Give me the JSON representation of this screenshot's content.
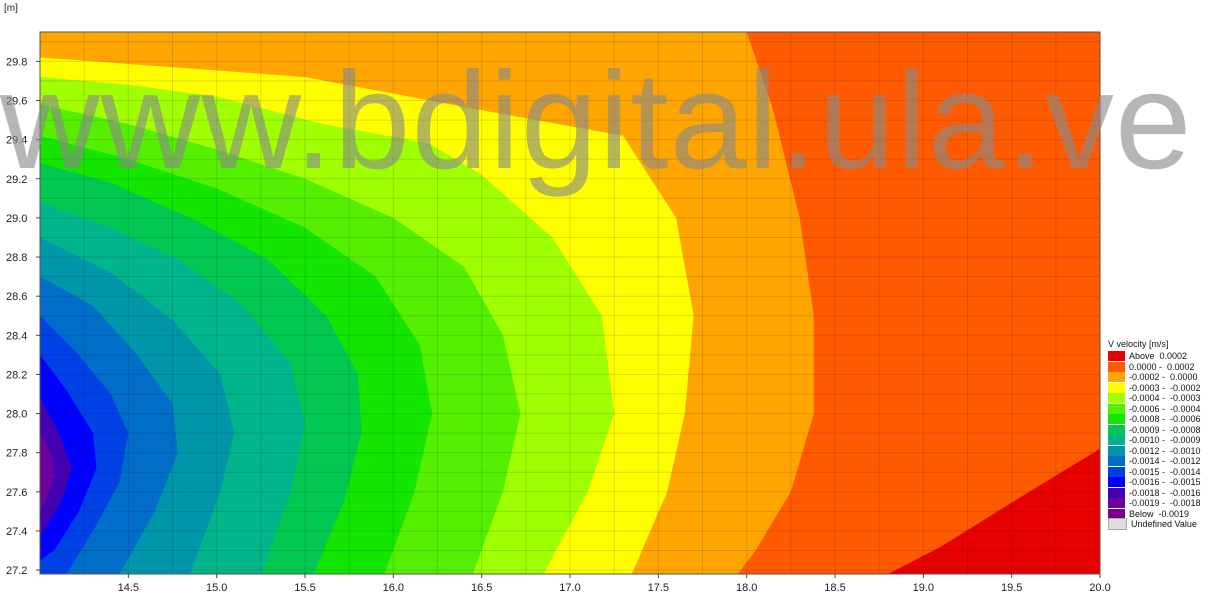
{
  "chart_data": {
    "type": "heatmap",
    "subtype": "filled-contour",
    "y_unit_label": "[m]",
    "x_ticks": [
      "14.5",
      "15.0",
      "15.5",
      "16.0",
      "16.5",
      "17.0",
      "17.5",
      "18.0",
      "18.5",
      "19.0",
      "19.5",
      "20.0"
    ],
    "y_ticks": [
      "27.2",
      "27.4",
      "27.6",
      "27.8",
      "28.0",
      "28.2",
      "28.4",
      "28.6",
      "28.8",
      "29.0",
      "29.2",
      "29.4",
      "29.6",
      "29.8"
    ],
    "xlim": [
      14.0,
      20.0
    ],
    "ylim": [
      27.18,
      29.95
    ],
    "grid": true,
    "legend_position": "right",
    "legend_title": "V velocity [m/s]",
    "legend": [
      {
        "label": "Above",
        "range": "0.0002",
        "color": "#e60000"
      },
      {
        "label": "0.0000 -",
        "range": "0.0002",
        "color": "#ff5a00"
      },
      {
        "label": "-0.0002 -",
        "range": "0.0000",
        "color": "#ffa500"
      },
      {
        "label": "-0.0003 -",
        "range": "-0.0002",
        "color": "#ffff00"
      },
      {
        "label": "-0.0004 -",
        "range": "-0.0003",
        "color": "#a0ff00"
      },
      {
        "label": "-0.0006 -",
        "range": "-0.0004",
        "color": "#55f000"
      },
      {
        "label": "-0.0008 -",
        "range": "-0.0006",
        "color": "#14e600"
      },
      {
        "label": "-0.0009 -",
        "range": "-0.0008",
        "color": "#00c850"
      },
      {
        "label": "-0.0010 -",
        "range": "-0.0009",
        "color": "#00b48c"
      },
      {
        "label": "-0.0012 -",
        "range": "-0.0010",
        "color": "#0096aa"
      },
      {
        "label": "-0.0014 -",
        "range": "-0.0012",
        "color": "#006ec8"
      },
      {
        "label": "-0.0015 -",
        "range": "-0.0014",
        "color": "#0041e6"
      },
      {
        "label": "-0.0016 -",
        "range": "-0.0015",
        "color": "#0000ff"
      },
      {
        "label": "-0.0018 -",
        "range": "-0.0016",
        "color": "#4600b4"
      },
      {
        "label": "-0.0019 -",
        "range": "-0.0018",
        "color": "#6e00a0"
      },
      {
        "label": "Below",
        "range": "-0.0019",
        "color": "#78008c"
      },
      {
        "label": "Undefined Value",
        "range": "",
        "color": "#dcdcdc"
      }
    ],
    "contours": [
      {
        "color": "#ff5a00",
        "points": [
          [
            14.0,
            29.95
          ],
          [
            20.0,
            29.95
          ],
          [
            20.0,
            27.18
          ],
          [
            14.0,
            27.18
          ]
        ]
      },
      {
        "color": "#e60000",
        "points": [
          [
            18.8,
            27.18
          ],
          [
            20.0,
            27.18
          ],
          [
            20.0,
            27.82
          ],
          [
            19.6,
            27.6
          ],
          [
            19.1,
            27.32
          ]
        ]
      },
      {
        "color": "#ffa500",
        "points": [
          [
            14.0,
            29.95
          ],
          [
            18.0,
            29.95
          ],
          [
            18.15,
            29.55
          ],
          [
            18.3,
            29.0
          ],
          [
            18.38,
            28.5
          ],
          [
            18.38,
            28.0
          ],
          [
            18.25,
            27.6
          ],
          [
            18.05,
            27.3
          ],
          [
            17.95,
            27.18
          ],
          [
            14.0,
            27.18
          ]
        ]
      },
      {
        "color": "#ffff00",
        "points": [
          [
            14.0,
            29.82
          ],
          [
            15.5,
            29.72
          ],
          [
            16.5,
            29.55
          ],
          [
            17.3,
            29.42
          ],
          [
            17.6,
            29.0
          ],
          [
            17.7,
            28.5
          ],
          [
            17.65,
            28.0
          ],
          [
            17.55,
            27.6
          ],
          [
            17.35,
            27.18
          ],
          [
            14.0,
            27.18
          ]
        ]
      },
      {
        "color": "#a0ff00",
        "points": [
          [
            14.0,
            29.72
          ],
          [
            14.5,
            29.68
          ],
          [
            15.0,
            29.62
          ],
          [
            15.6,
            29.48
          ],
          [
            16.2,
            29.38
          ],
          [
            16.5,
            29.22
          ],
          [
            16.9,
            28.9
          ],
          [
            17.18,
            28.5
          ],
          [
            17.25,
            28.0
          ],
          [
            17.1,
            27.6
          ],
          [
            16.85,
            27.18
          ],
          [
            14.0,
            27.18
          ]
        ]
      },
      {
        "color": "#55f000",
        "points": [
          [
            14.0,
            29.58
          ],
          [
            14.5,
            29.48
          ],
          [
            15.0,
            29.35
          ],
          [
            15.5,
            29.2
          ],
          [
            16.0,
            29.0
          ],
          [
            16.4,
            28.75
          ],
          [
            16.62,
            28.4
          ],
          [
            16.72,
            28.0
          ],
          [
            16.62,
            27.6
          ],
          [
            16.45,
            27.18
          ],
          [
            14.0,
            27.18
          ]
        ]
      },
      {
        "color": "#14e600",
        "points": [
          [
            14.0,
            29.42
          ],
          [
            14.5,
            29.3
          ],
          [
            15.0,
            29.15
          ],
          [
            15.5,
            28.95
          ],
          [
            15.9,
            28.7
          ],
          [
            16.15,
            28.35
          ],
          [
            16.22,
            28.0
          ],
          [
            16.12,
            27.6
          ],
          [
            15.95,
            27.18
          ],
          [
            14.0,
            27.18
          ]
        ]
      },
      {
        "color": "#00c850",
        "points": [
          [
            14.0,
            29.28
          ],
          [
            14.4,
            29.18
          ],
          [
            14.9,
            28.98
          ],
          [
            15.3,
            28.78
          ],
          [
            15.62,
            28.5
          ],
          [
            15.8,
            28.2
          ],
          [
            15.82,
            27.9
          ],
          [
            15.72,
            27.55
          ],
          [
            15.55,
            27.18
          ],
          [
            14.0,
            27.18
          ]
        ]
      },
      {
        "color": "#00b48c",
        "points": [
          [
            14.0,
            29.08
          ],
          [
            14.4,
            28.95
          ],
          [
            14.8,
            28.78
          ],
          [
            15.15,
            28.55
          ],
          [
            15.42,
            28.25
          ],
          [
            15.5,
            27.95
          ],
          [
            15.42,
            27.6
          ],
          [
            15.25,
            27.18
          ],
          [
            14.0,
            27.18
          ]
        ]
      },
      {
        "color": "#0096aa",
        "points": [
          [
            14.0,
            28.9
          ],
          [
            14.4,
            28.72
          ],
          [
            14.75,
            28.48
          ],
          [
            15.02,
            28.2
          ],
          [
            15.1,
            27.9
          ],
          [
            15.02,
            27.6
          ],
          [
            14.85,
            27.18
          ],
          [
            14.0,
            27.18
          ]
        ]
      },
      {
        "color": "#006ec8",
        "points": [
          [
            14.0,
            28.7
          ],
          [
            14.3,
            28.55
          ],
          [
            14.55,
            28.3
          ],
          [
            14.75,
            28.05
          ],
          [
            14.78,
            27.8
          ],
          [
            14.65,
            27.5
          ],
          [
            14.45,
            27.18
          ],
          [
            14.0,
            27.18
          ]
        ]
      },
      {
        "color": "#0041e6",
        "points": [
          [
            14.0,
            28.5
          ],
          [
            14.2,
            28.32
          ],
          [
            14.4,
            28.1
          ],
          [
            14.5,
            27.9
          ],
          [
            14.45,
            27.65
          ],
          [
            14.3,
            27.4
          ],
          [
            14.15,
            27.18
          ],
          [
            14.0,
            27.18
          ]
        ]
      },
      {
        "color": "#0000ff",
        "points": [
          [
            14.0,
            28.3
          ],
          [
            14.15,
            28.12
          ],
          [
            14.3,
            27.9
          ],
          [
            14.32,
            27.72
          ],
          [
            14.22,
            27.5
          ],
          [
            14.08,
            27.3
          ],
          [
            14.0,
            27.25
          ]
        ]
      },
      {
        "color": "#4600b4",
        "points": [
          [
            14.0,
            28.08
          ],
          [
            14.1,
            27.92
          ],
          [
            14.18,
            27.72
          ],
          [
            14.12,
            27.55
          ],
          [
            14.02,
            27.4
          ],
          [
            14.0,
            27.38
          ]
        ]
      },
      {
        "color": "#6e00a0",
        "points": [
          [
            14.0,
            27.9
          ],
          [
            14.06,
            27.8
          ],
          [
            14.08,
            27.68
          ],
          [
            14.03,
            27.55
          ],
          [
            14.0,
            27.52
          ]
        ]
      }
    ]
  },
  "watermark": "www.bdigital.ula.ve"
}
